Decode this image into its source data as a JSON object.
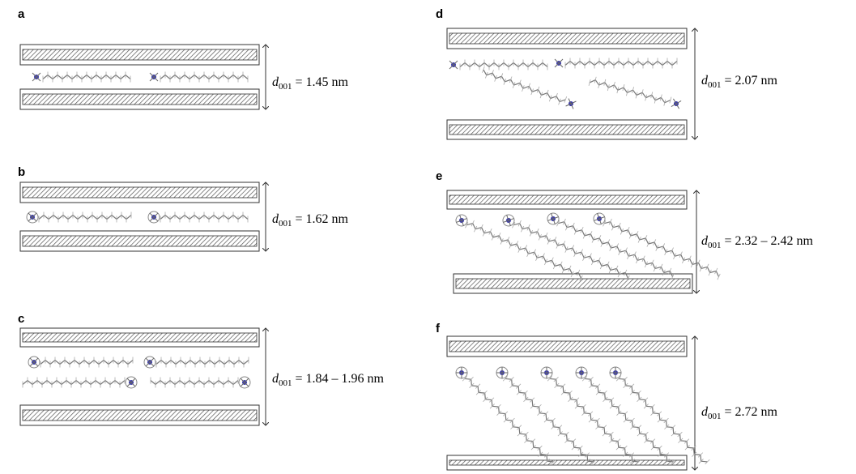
{
  "panels": [
    {
      "label": "a",
      "symbol": "d",
      "subscript": "001",
      "value": "= 1.45 nm"
    },
    {
      "label": "b",
      "symbol": "d",
      "subscript": "001",
      "value": "= 1.62 nm"
    },
    {
      "label": "c",
      "symbol": "d",
      "subscript": "001",
      "value": "= 1.84 – 1.96 nm"
    },
    {
      "label": "d",
      "symbol": "d",
      "subscript": "001",
      "value": "= 2.07 nm"
    },
    {
      "label": "e",
      "symbol": "d",
      "subscript": "001",
      "value": "= 2.32 – 2.42 nm"
    },
    {
      "label": "f",
      "symbol": "d",
      "subscript": "001",
      "value": "= 2.72 nm"
    }
  ]
}
